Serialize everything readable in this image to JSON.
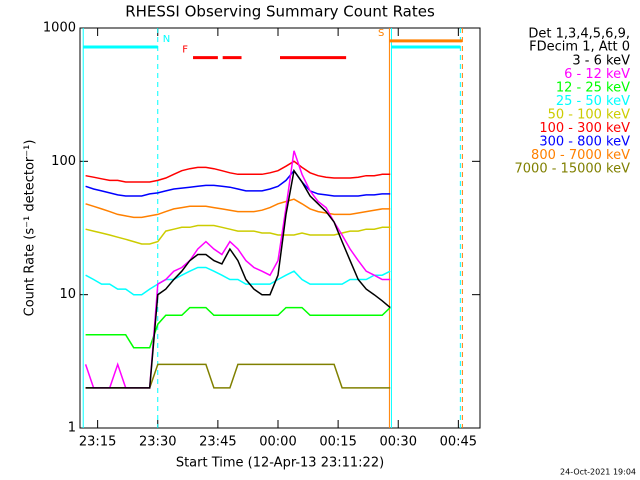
{
  "chart_data": {
    "type": "line",
    "title": "RHESSI Observing Summary Count Rates",
    "x_label": "Start Time (12-Apr-13 23:11:22)",
    "y_label": "Count Rate (s⁻¹ detector⁻¹)",
    "legend_header": [
      "Det 1,3,4,5,6,9,",
      "FDecim 1, Att 0"
    ],
    "footer": "24-Oct-2021 19:04",
    "log_y": true,
    "legend": "right",
    "xlim": [
      10.6,
      110.4
    ],
    "xticks": [
      {
        "value": 15,
        "label": "23:15"
      },
      {
        "value": 30,
        "label": "23:30"
      },
      {
        "value": 45,
        "label": "23:45"
      },
      {
        "value": 60,
        "label": "00:00"
      },
      {
        "value": 75,
        "label": "00:15"
      },
      {
        "value": 90,
        "label": "00:30"
      },
      {
        "value": 105,
        "label": "00:45"
      }
    ],
    "ylim": [
      1,
      1000
    ],
    "yticks": [
      1,
      10,
      100,
      1000
    ],
    "x": [
      12,
      14,
      16,
      18,
      20,
      22,
      24,
      26,
      28,
      30,
      32,
      34,
      36,
      38,
      40,
      42,
      44,
      46,
      48,
      50,
      52,
      54,
      56,
      58,
      60,
      62,
      64,
      66,
      68,
      70,
      72,
      74,
      76,
      78,
      80,
      82,
      84,
      86,
      88
    ],
    "series": [
      {
        "name": "3 - 6 keV",
        "color": "#000000",
        "values": [
          2,
          2,
          2,
          2,
          2,
          2,
          2,
          2,
          2,
          10,
          11,
          13,
          15,
          18,
          20,
          20,
          18,
          17,
          22,
          18,
          13,
          11,
          10,
          10,
          14,
          40,
          85,
          70,
          55,
          48,
          42,
          35,
          25,
          18,
          13,
          11,
          10,
          9,
          8
        ]
      },
      {
        "name": "6 - 12 keV",
        "color": "#ff00ff",
        "values": [
          3,
          2,
          2,
          2,
          3,
          2,
          2,
          2,
          2,
          12,
          13,
          15,
          16,
          18,
          22,
          25,
          22,
          20,
          25,
          22,
          18,
          16,
          15,
          14,
          18,
          45,
          120,
          80,
          60,
          50,
          45,
          35,
          28,
          22,
          18,
          15,
          14,
          13,
          13
        ]
      },
      {
        "name": "12 - 25 keV",
        "color": "#00ff00",
        "values": [
          5,
          5,
          5,
          5,
          5,
          5,
          4,
          4,
          4,
          6,
          7,
          7,
          7,
          8,
          8,
          8,
          7,
          7,
          7,
          7,
          7,
          7,
          7,
          7,
          7,
          8,
          8,
          8,
          7,
          7,
          7,
          7,
          7,
          7,
          7,
          7,
          7,
          7,
          8
        ]
      },
      {
        "name": "25 - 50 keV",
        "color": "#00ffff",
        "values": [
          14,
          13,
          12,
          12,
          11,
          11,
          10,
          10,
          11,
          12,
          13,
          13,
          14,
          15,
          16,
          16,
          15,
          14,
          13,
          13,
          12,
          12,
          12,
          12,
          13,
          14,
          15,
          13,
          12,
          12,
          12,
          12,
          12,
          13,
          13,
          13,
          14,
          14,
          15
        ]
      },
      {
        "name": "50 - 100 keV",
        "color": "#cccc00",
        "values": [
          31,
          30,
          29,
          28,
          27,
          26,
          25,
          24,
          24,
          25,
          30,
          31,
          32,
          32,
          33,
          33,
          33,
          32,
          31,
          30,
          30,
          30,
          29,
          29,
          28,
          28,
          28,
          29,
          28,
          28,
          28,
          28,
          29,
          30,
          30,
          31,
          31,
          32,
          32
        ]
      },
      {
        "name": "100 - 300 keV",
        "color": "#ff0000",
        "values": [
          78,
          76,
          74,
          72,
          72,
          70,
          70,
          70,
          70,
          72,
          75,
          80,
          85,
          88,
          90,
          90,
          88,
          85,
          82,
          80,
          80,
          80,
          80,
          82,
          85,
          92,
          100,
          90,
          82,
          78,
          76,
          75,
          75,
          75,
          76,
          78,
          78,
          80,
          80
        ]
      },
      {
        "name": "300 - 800 keV",
        "color": "#0000ff",
        "values": [
          65,
          62,
          60,
          58,
          56,
          55,
          55,
          55,
          57,
          58,
          60,
          62,
          63,
          64,
          65,
          66,
          66,
          65,
          64,
          62,
          60,
          60,
          60,
          62,
          65,
          72,
          85,
          70,
          60,
          57,
          56,
          55,
          55,
          55,
          55,
          56,
          56,
          57,
          57
        ]
      },
      {
        "name": "800 - 7000 keV",
        "color": "#ff8000",
        "values": [
          48,
          46,
          44,
          42,
          40,
          39,
          38,
          38,
          39,
          40,
          42,
          44,
          45,
          46,
          46,
          46,
          45,
          44,
          43,
          42,
          42,
          42,
          43,
          45,
          48,
          50,
          52,
          48,
          44,
          42,
          41,
          40,
          40,
          40,
          41,
          42,
          43,
          44,
          44
        ]
      },
      {
        "name": "7000 - 15000 keV",
        "color": "#808000",
        "values": [
          2,
          2,
          2,
          2,
          2,
          2,
          2,
          2,
          2,
          3,
          3,
          3,
          3,
          3,
          3,
          3,
          2,
          2,
          2,
          3,
          3,
          3,
          3,
          3,
          3,
          3,
          3,
          3,
          3,
          3,
          3,
          3,
          2,
          2,
          2,
          2,
          2,
          2,
          2
        ]
      }
    ],
    "flags": [
      {
        "text": "N",
        "color": "#00ffff",
        "level": 720,
        "label_side": "end",
        "bounds": true,
        "segments": [
          [
            11.4,
            30
          ],
          [
            88.3,
            105.5
          ]
        ]
      },
      {
        "text": "F",
        "color": "#ff0000",
        "level": 600,
        "label_side": "start",
        "bounds": false,
        "segments": [
          [
            38.8,
            45
          ],
          [
            46.2,
            50.9
          ],
          [
            60.5,
            77
          ]
        ]
      },
      {
        "text": "S",
        "color": "#ff8000",
        "level": 800,
        "label_side": "start",
        "bounds": true,
        "segments": [
          [
            87.8,
            106
          ]
        ]
      }
    ]
  }
}
